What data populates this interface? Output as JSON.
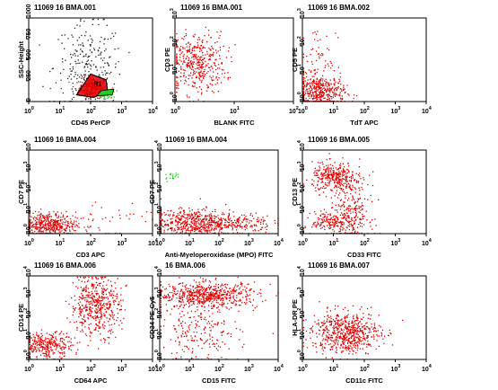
{
  "chart_data": [
    {
      "type": "scatter",
      "title": "11069 16 BMA.001",
      "xlabel": "CD45 PerCP",
      "ylabel": "SSC-Height",
      "xscale": "log",
      "yscale": "linear",
      "xticks": [
        "10",
        "10",
        "10",
        "10",
        "10"
      ],
      "xexp": [
        "0",
        "1",
        "2",
        "3",
        "4"
      ],
      "yticks": [
        "0",
        "250",
        "500",
        "750",
        "1000"
      ],
      "annotation": "R1",
      "clusters": [
        {
          "color": "#e00000",
          "cx": 2.05,
          "cy": 170,
          "sx": 0.22,
          "sy": 60,
          "n": 260
        },
        {
          "color": "#222222",
          "cx": 1.9,
          "cy": 420,
          "sx": 0.55,
          "sy": 260,
          "n": 240
        },
        {
          "color": "#22cc22",
          "cx": 2.45,
          "cy": 110,
          "sx": 0.12,
          "sy": 30,
          "n": 90
        }
      ]
    },
    {
      "type": "scatter",
      "title": "11069 16 BMA.001",
      "xlabel": "BLANK FITC",
      "ylabel": "CD3 PE",
      "xscale": "log",
      "yscale": "log",
      "xticks": [
        "10",
        "10",
        "10"
      ],
      "xexp": [
        "0",
        "1",
        "2"
      ],
      "yticks": [
        "10",
        "10",
        "10",
        "10"
      ],
      "yexp": [
        "0",
        "1",
        "2",
        "3"
      ],
      "clusters": [
        {
          "color": "#e00000",
          "cx": 0.35,
          "cy": 1.4,
          "sx": 0.25,
          "sy": 0.55,
          "n": 420
        }
      ]
    },
    {
      "type": "scatter",
      "title": "11069 16 BMA.002",
      "xlabel": "TdT APC",
      "ylabel": "CD5 PE",
      "xscale": "log",
      "yscale": "log",
      "xticks": [
        "10",
        "10",
        "10",
        "10",
        "10"
      ],
      "xexp": [
        "0",
        "1",
        "2",
        "3",
        "4"
      ],
      "yticks": [
        "10",
        "10",
        "10",
        "10"
      ],
      "yexp": [
        "0",
        "1",
        "2",
        "3"
      ],
      "clusters": [
        {
          "color": "#e00000",
          "cx": 0.55,
          "cy": 0.35,
          "sx": 0.4,
          "sy": 0.3,
          "n": 420
        },
        {
          "color": "#e00000",
          "cx": 0.5,
          "cy": 1.6,
          "sx": 0.3,
          "sy": 0.6,
          "n": 60
        }
      ]
    },
    {
      "type": "scatter",
      "title": "11069 16 BMA.004",
      "xlabel": "CD3 APC",
      "ylabel": "CD7 PE",
      "xscale": "log",
      "yscale": "log",
      "xticks": [
        "10",
        "10",
        "10",
        "10",
        "10"
      ],
      "xexp": [
        "0",
        "1",
        "2",
        "3",
        "4"
      ],
      "yticks": [
        "10",
        "10",
        "10",
        "10",
        "10"
      ],
      "yexp": [
        "0",
        "1",
        "2",
        "3",
        "4"
      ],
      "clusters": [
        {
          "color": "#e00000",
          "cx": 0.6,
          "cy": 0.45,
          "sx": 0.45,
          "sy": 0.3,
          "n": 440
        },
        {
          "color": "#e00000",
          "cx": 2.2,
          "cy": 0.7,
          "sx": 0.9,
          "sy": 0.5,
          "n": 50
        }
      ]
    },
    {
      "type": "scatter",
      "title": "11069 16 BMA.004",
      "xlabel": "Anti-Myeloperoxidase (MPO) FITC",
      "ylabel": "CD7 PE",
      "xscale": "log",
      "yscale": "log",
      "xticks": [
        "10",
        "10",
        "10",
        "10",
        "10"
      ],
      "xexp": [
        "0",
        "1",
        "2",
        "3",
        "4"
      ],
      "yticks": [
        "10",
        "10",
        "10",
        "10",
        "10"
      ],
      "yexp": [
        "0",
        "1",
        "2",
        "3",
        "4"
      ],
      "clusters": [
        {
          "color": "#e00000",
          "cx": 1.1,
          "cy": 0.55,
          "sx": 0.7,
          "sy": 0.32,
          "n": 520
        },
        {
          "color": "#e00000",
          "cx": 2.6,
          "cy": 0.55,
          "sx": 0.6,
          "sy": 0.25,
          "n": 160
        },
        {
          "color": "#22cc22",
          "cx": 0.4,
          "cy": 2.8,
          "sx": 0.15,
          "sy": 0.12,
          "n": 18
        }
      ]
    },
    {
      "type": "scatter",
      "title": "11069 16 BMA.005",
      "xlabel": "CD33 FITC",
      "ylabel": "CD13 PE",
      "xscale": "log",
      "yscale": "log",
      "xticks": [
        "10",
        "10",
        "10",
        "10",
        "10"
      ],
      "xexp": [
        "0",
        "1",
        "2",
        "3",
        "4"
      ],
      "yticks": [
        "10",
        "10",
        "10",
        "10",
        "10"
      ],
      "yexp": [
        "0",
        "1",
        "2",
        "3",
        "4"
      ],
      "clusters": [
        {
          "color": "#e00000",
          "cx": 1.0,
          "cy": 2.7,
          "sx": 0.35,
          "sy": 0.35,
          "n": 320
        },
        {
          "color": "#e00000",
          "cx": 1.6,
          "cy": 1.1,
          "sx": 0.28,
          "sy": 0.9,
          "n": 260
        },
        {
          "color": "#e00000",
          "cx": 0.9,
          "cy": 0.6,
          "sx": 0.3,
          "sy": 0.25,
          "n": 160
        }
      ]
    },
    {
      "type": "scatter",
      "title": "11069 16 BMA.006",
      "xlabel": "CD64 APC",
      "ylabel": "CD14 PE",
      "xscale": "log",
      "yscale": "log",
      "xticks": [
        "10",
        "10",
        "10",
        "10",
        "10"
      ],
      "xexp": [
        "0",
        "1",
        "2",
        "3",
        "4"
      ],
      "yticks": [
        "10",
        "10",
        "10",
        "10",
        "10"
      ],
      "yexp": [
        "0",
        "1",
        "2",
        "3",
        "4"
      ],
      "clusters": [
        {
          "color": "#e00000",
          "cx": 0.6,
          "cy": 0.7,
          "sx": 0.4,
          "sy": 0.3,
          "n": 300
        },
        {
          "color": "#e00000",
          "cx": 2.15,
          "cy": 2.6,
          "sx": 0.4,
          "sy": 0.7,
          "n": 480
        }
      ]
    },
    {
      "type": "scatter",
      "title": "16 BMA.006",
      "xlabel": "CD15 FITC",
      "ylabel": "CD34 PE-Cy5",
      "xscale": "log",
      "yscale": "log",
      "xticks": [
        "10",
        "10",
        "10",
        "10",
        "10"
      ],
      "xexp": [
        "0",
        "1",
        "2",
        "3",
        "4"
      ],
      "yticks": [
        "10",
        "10",
        "10",
        "10",
        "10"
      ],
      "yexp": [
        "0",
        "1",
        "2",
        "3",
        "4"
      ],
      "clusters": [
        {
          "color": "#e00000",
          "cx": 1.6,
          "cy": 3.1,
          "sx": 0.85,
          "sy": 0.3,
          "n": 620
        },
        {
          "color": "#e00000",
          "cx": 1.3,
          "cy": 1.2,
          "sx": 0.7,
          "sy": 0.8,
          "n": 220
        }
      ]
    },
    {
      "type": "scatter",
      "title": "11069 16 BMA.007",
      "xlabel": "CD11c FITC",
      "ylabel": "HLA-DR PE",
      "xscale": "log",
      "yscale": "log",
      "xticks": [
        "10",
        "10",
        "10",
        "10",
        "10"
      ],
      "xexp": [
        "0",
        "1",
        "2",
        "3",
        "4"
      ],
      "yticks": [
        "10",
        "10",
        "10",
        "10",
        "10"
      ],
      "yexp": [
        "0",
        "1",
        "2",
        "3",
        "4"
      ],
      "clusters": [
        {
          "color": "#e00000",
          "cx": 1.4,
          "cy": 1.3,
          "sx": 0.55,
          "sy": 0.5,
          "n": 620
        }
      ]
    }
  ]
}
